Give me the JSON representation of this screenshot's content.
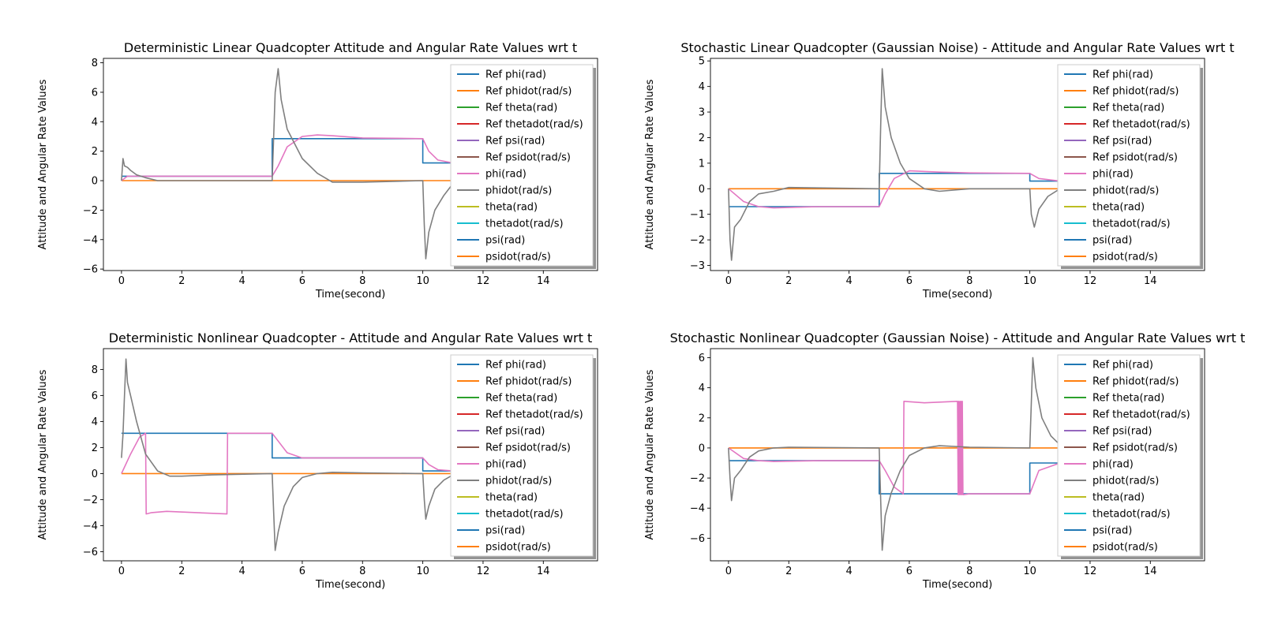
{
  "figure": {
    "legend_labels": [
      "Ref phi(rad)",
      "Ref phidot(rad/s)",
      "Ref theta(rad)",
      "Ref thetadot(rad/s)",
      "Ref psi(rad)",
      "Ref psidot(rad/s)",
      "phi(rad)",
      "phidot(rad/s)",
      "theta(rad)",
      "thetadot(rad/s)",
      "psi(rad)",
      "psidot(rad/s)"
    ],
    "legend_colors": [
      "#1f77b4",
      "#ff7f0e",
      "#2ca02c",
      "#d62728",
      "#9467bd",
      "#8c564b",
      "#e377c2",
      "#7f7f7f",
      "#bcbd22",
      "#17becf",
      "#1f77b4",
      "#ff7f0e"
    ]
  },
  "chart_data": [
    {
      "type": "line",
      "title": "Deterministic Linear Quadcopter Attitude and Angular Rate Values wrt t",
      "xlabel": "Time(second)",
      "ylabel": "Attitude and Angular Rate Values",
      "xlim": [
        -0.6,
        15.8
      ],
      "ylim": [
        -6.1,
        8.3
      ],
      "xticks": [
        0,
        2,
        4,
        6,
        8,
        10,
        12,
        14
      ],
      "yticks": [
        -6,
        -4,
        -2,
        0,
        2,
        4,
        6,
        8
      ],
      "legend": "top-right",
      "grid": false,
      "series": [
        {
          "name": "Ref phi(rad)",
          "color": "#1f77b4",
          "x": [
            0,
            5,
            5,
            10,
            10,
            15
          ],
          "y": [
            0.3,
            0.3,
            2.85,
            2.85,
            1.2,
            1.2
          ]
        },
        {
          "name": "Ref phidot(rad/s)",
          "color": "#ff7f0e",
          "x": [
            0,
            15
          ],
          "y": [
            0,
            0
          ]
        },
        {
          "name": "phi(rad)",
          "color": "#e377c2",
          "x": [
            0,
            0.2,
            0.5,
            1,
            5,
            5.2,
            5.5,
            6,
            6.5,
            7,
            8,
            10,
            10.2,
            10.5,
            11
          ],
          "y": [
            0,
            0.3,
            0.3,
            0.3,
            0.3,
            1.0,
            2.3,
            3.0,
            3.1,
            3.05,
            2.9,
            2.85,
            2.0,
            1.4,
            1.2
          ]
        },
        {
          "name": "phidot(rad/s)",
          "color": "#7f7f7f",
          "x": [
            0,
            0.05,
            0.1,
            0.2,
            0.3,
            0.5,
            0.8,
            1.2,
            5,
            5.05,
            5.1,
            5.2,
            5.3,
            5.5,
            6,
            6.5,
            7,
            8,
            10,
            10.05,
            10.1,
            10.2,
            10.4,
            10.7,
            11
          ],
          "y": [
            0,
            1.5,
            1.0,
            0.9,
            0.7,
            0.4,
            0.2,
            0,
            0,
            3.0,
            6.0,
            7.6,
            5.5,
            3.5,
            1.5,
            0.5,
            -0.1,
            -0.1,
            0,
            -3.0,
            -5.3,
            -3.5,
            -2.0,
            -1.0,
            -0.2
          ]
        }
      ]
    },
    {
      "type": "line",
      "title": "Stochastic Linear Quadcopter (Gaussian Noise) - Attitude and Angular Rate Values wrt t",
      "xlabel": "Time(second)",
      "ylabel": "Attitude and Angular Rate Values",
      "xlim": [
        -0.6,
        15.8
      ],
      "ylim": [
        -3.2,
        5.1
      ],
      "xticks": [
        0,
        2,
        4,
        6,
        8,
        10,
        12,
        14
      ],
      "yticks": [
        -3,
        -2,
        -1,
        0,
        1,
        2,
        3,
        4,
        5
      ],
      "legend": "top-right",
      "grid": false,
      "series": [
        {
          "name": "Ref phi(rad)",
          "color": "#1f77b4",
          "x": [
            0,
            5,
            5,
            10,
            10,
            15
          ],
          "y": [
            -0.7,
            -0.7,
            0.6,
            0.6,
            0.3,
            0.3
          ]
        },
        {
          "name": "Ref phidot(rad/s)",
          "color": "#ff7f0e",
          "x": [
            0,
            15
          ],
          "y": [
            0,
            0
          ]
        },
        {
          "name": "phi(rad)",
          "color": "#e377c2",
          "x": [
            0,
            0.5,
            1,
            1.5,
            3,
            5,
            5.2,
            5.5,
            6,
            7,
            8,
            10,
            10.3,
            11
          ],
          "y": [
            0,
            -0.5,
            -0.7,
            -0.75,
            -0.7,
            -0.7,
            -0.2,
            0.4,
            0.7,
            0.65,
            0.62,
            0.6,
            0.4,
            0.3
          ]
        },
        {
          "name": "phidot(rad/s)",
          "color": "#7f7f7f",
          "x": [
            0,
            0.05,
            0.1,
            0.2,
            0.4,
            0.7,
            1,
            1.5,
            2,
            5,
            5.05,
            5.1,
            5.2,
            5.4,
            5.7,
            6,
            6.5,
            7,
            8,
            10,
            10.05,
            10.15,
            10.3,
            10.6,
            11
          ],
          "y": [
            0,
            -2.0,
            -2.8,
            -1.5,
            -1.2,
            -0.5,
            -0.2,
            -0.1,
            0.05,
            0,
            2.5,
            4.7,
            3.2,
            2.0,
            1.0,
            0.4,
            0,
            -0.1,
            0,
            0,
            -1.0,
            -1.5,
            -0.8,
            -0.3,
            0
          ]
        }
      ]
    },
    {
      "type": "line",
      "title": "Deterministic Nonlinear Quadcopter - Attitude and Angular Rate Values wrt t",
      "xlabel": "Time(second)",
      "ylabel": "Attitude and Angular Rate Values",
      "xlim": [
        -0.6,
        15.8
      ],
      "ylim": [
        -6.7,
        9.6
      ],
      "xticks": [
        0,
        2,
        4,
        6,
        8,
        10,
        12,
        14
      ],
      "yticks": [
        -6,
        -4,
        -2,
        0,
        2,
        4,
        6,
        8
      ],
      "legend": "top-right",
      "grid": false,
      "series": [
        {
          "name": "Ref phi(rad)",
          "color": "#1f77b4",
          "x": [
            0,
            5,
            5,
            10,
            10,
            15
          ],
          "y": [
            3.1,
            3.1,
            1.2,
            1.2,
            0.2,
            0.2
          ]
        },
        {
          "name": "Ref phidot(rad/s)",
          "color": "#ff7f0e",
          "x": [
            0,
            15
          ],
          "y": [
            0,
            0
          ]
        },
        {
          "name": "phi(rad)",
          "color": "#e377c2",
          "x": [
            0,
            0.3,
            0.6,
            0.8,
            0.82,
            1.0,
            1.5,
            3.5,
            3.52,
            5,
            5.2,
            5.5,
            6,
            7,
            10,
            10.2,
            10.5,
            11
          ],
          "y": [
            0,
            1.5,
            2.8,
            3.1,
            -3.1,
            -3.0,
            -2.9,
            -3.1,
            3.1,
            3.1,
            2.5,
            1.6,
            1.2,
            1.2,
            1.2,
            0.7,
            0.3,
            0.2
          ]
        },
        {
          "name": "phidot(rad/s)",
          "color": "#7f7f7f",
          "x": [
            0,
            0.05,
            0.1,
            0.15,
            0.2,
            0.3,
            0.5,
            0.8,
            1.2,
            1.6,
            2,
            3,
            5,
            5.05,
            5.1,
            5.2,
            5.4,
            5.7,
            6,
            6.5,
            7,
            8,
            10,
            10.05,
            10.1,
            10.2,
            10.4,
            10.7,
            11
          ],
          "y": [
            1.2,
            3.0,
            6.0,
            8.8,
            7.0,
            6.0,
            4.0,
            1.5,
            0.2,
            -0.2,
            -0.2,
            -0.1,
            0,
            -3.0,
            -5.9,
            -4.5,
            -2.5,
            -1.0,
            -0.3,
            0,
            0.1,
            0.05,
            0,
            -2.0,
            -3.5,
            -2.5,
            -1.2,
            -0.5,
            -0.1
          ]
        }
      ]
    },
    {
      "type": "line",
      "title": "Stochastic Nonlinear Quadcopter (Gaussian Noise) - Attitude and Angular Rate Values wrt t",
      "xlabel": "Time(second)",
      "ylabel": "Attitude and Angular Rate Values",
      "xlim": [
        -0.6,
        15.8
      ],
      "ylim": [
        -7.5,
        6.6
      ],
      "xticks": [
        0,
        2,
        4,
        6,
        8,
        10,
        12,
        14
      ],
      "yticks": [
        -6,
        -4,
        -2,
        0,
        2,
        4,
        6
      ],
      "legend": "top-right",
      "grid": false,
      "series": [
        {
          "name": "Ref phi(rad)",
          "color": "#1f77b4",
          "x": [
            0,
            5,
            5,
            10,
            10,
            15
          ],
          "y": [
            -0.85,
            -0.85,
            -3.05,
            -3.05,
            -1.0,
            -1.0
          ]
        },
        {
          "name": "Ref phidot(rad/s)",
          "color": "#ff7f0e",
          "x": [
            0,
            15
          ],
          "y": [
            0,
            0
          ]
        },
        {
          "name": "phi(rad)",
          "color": "#e377c2",
          "x": [
            0,
            0.5,
            1,
            1.5,
            3,
            5,
            5.2,
            5.5,
            5.8,
            5.82,
            6.5,
            7.6,
            7.62,
            7.64,
            7.66,
            7.68,
            7.7,
            7.72,
            7.74,
            7.76,
            7.78,
            7.8,
            8,
            10,
            10.3,
            11
          ],
          "y": [
            0,
            -0.7,
            -0.85,
            -0.9,
            -0.85,
            -0.85,
            -1.5,
            -2.6,
            -3.05,
            3.1,
            3.0,
            3.1,
            -3.1,
            3.1,
            -3.1,
            3.1,
            -3.1,
            3.1,
            -3.1,
            3.1,
            -3.1,
            -3.1,
            -3.05,
            -3.05,
            -1.5,
            -1.0
          ]
        },
        {
          "name": "phidot(rad/s)",
          "color": "#7f7f7f",
          "x": [
            0,
            0.05,
            0.1,
            0.2,
            0.4,
            0.7,
            1,
            1.5,
            2,
            5,
            5.05,
            5.1,
            5.2,
            5.4,
            5.7,
            6,
            6.5,
            7,
            8,
            10,
            10.05,
            10.1,
            10.2,
            10.4,
            10.7,
            11
          ],
          "y": [
            0,
            -2.0,
            -3.5,
            -2.0,
            -1.5,
            -0.6,
            -0.2,
            0,
            0.05,
            0,
            -3.5,
            -6.8,
            -4.5,
            -3.0,
            -1.5,
            -0.5,
            0,
            0.15,
            0.05,
            0,
            3.0,
            6.0,
            4.0,
            2.0,
            0.8,
            0.2
          ]
        }
      ]
    }
  ]
}
